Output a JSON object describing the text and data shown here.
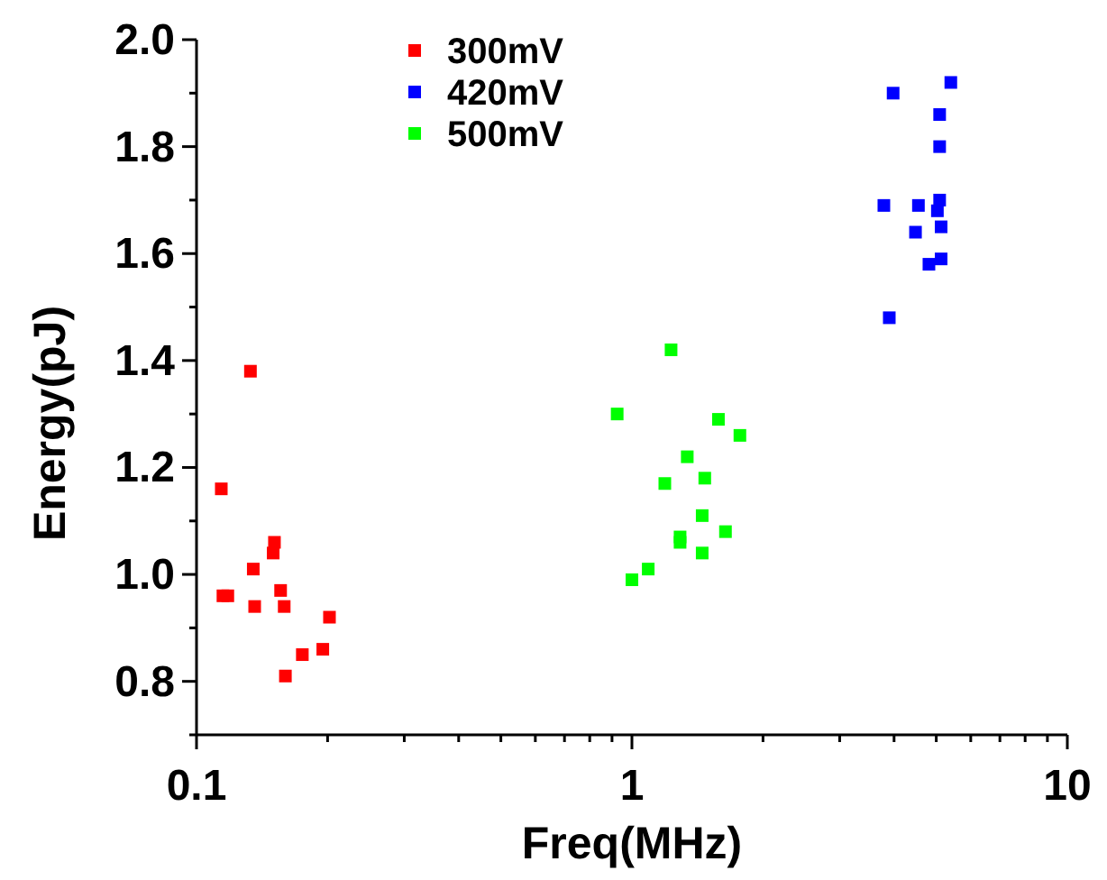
{
  "chart_data": {
    "type": "scatter",
    "xlabel": "Freq(MHz)",
    "ylabel": "Energy(pJ)",
    "log": "x",
    "xlim": [
      0.1,
      10
    ],
    "ylim": [
      0.7,
      2.0
    ],
    "xticks": [
      0.1,
      {
        "value": 0.2,
        "label": null
      },
      {
        "value": 0.3,
        "label": null
      },
      {
        "value": 0.4,
        "label": null
      },
      {
        "value": 0.5,
        "label": null
      },
      {
        "value": 0.6,
        "label": null
      },
      {
        "value": 0.7,
        "label": null
      },
      {
        "value": 0.8,
        "label": null
      },
      {
        "value": 0.9,
        "label": null
      },
      1,
      {
        "value": 2,
        "label": null
      },
      {
        "value": 3,
        "label": null
      },
      {
        "value": 4,
        "label": null
      },
      {
        "value": 5,
        "label": null
      },
      {
        "value": 6,
        "label": null
      },
      {
        "value": 7,
        "label": null
      },
      {
        "value": 8,
        "label": null
      },
      {
        "value": 9,
        "label": null
      },
      10
    ],
    "yticks": [
      {
        "value": 0.7,
        "label": null
      },
      {
        "value": 0.8,
        "label": "0.8"
      },
      {
        "value": 0.9,
        "label": null
      },
      {
        "value": 1.0,
        "label": "1.0"
      },
      {
        "value": 1.1,
        "label": null
      },
      {
        "value": 1.2,
        "label": "1.2"
      },
      {
        "value": 1.3,
        "label": null
      },
      {
        "value": 1.4,
        "label": "1.4"
      },
      {
        "value": 1.5,
        "label": null
      },
      {
        "value": 1.6,
        "label": "1.6"
      },
      {
        "value": 1.7,
        "label": null
      },
      {
        "value": 1.8,
        "label": "1.8"
      },
      {
        "value": 1.9,
        "label": null
      },
      {
        "value": 2.0,
        "label": "2.0"
      }
    ],
    "grid": false,
    "legend": "top left",
    "marker": "square",
    "series": [
      {
        "name": "300mV",
        "color": "#ff0000",
        "x": [
          0.133,
          0.114,
          0.151,
          0.15,
          0.135,
          0.115,
          0.118,
          0.156,
          0.136,
          0.159,
          0.202,
          0.195,
          0.175,
          0.16
        ],
        "values": [
          1.38,
          1.16,
          1.06,
          1.04,
          1.01,
          0.96,
          0.96,
          0.97,
          0.94,
          0.94,
          0.92,
          0.86,
          0.85,
          0.81
        ]
      },
      {
        "name": "420mV",
        "color": "#0000ff",
        "x": [
          3.98,
          5.4,
          5.09,
          5.09,
          3.79,
          4.55,
          5.09,
          5.03,
          5.13,
          4.48,
          5.13,
          4.81,
          3.9
        ],
        "values": [
          1.9,
          1.92,
          1.86,
          1.8,
          1.69,
          1.69,
          1.7,
          1.68,
          1.65,
          1.64,
          1.59,
          1.58,
          1.48
        ]
      },
      {
        "name": "500mV",
        "color": "#00ff00",
        "x": [
          1.23,
          0.925,
          1.58,
          1.77,
          1.34,
          1.19,
          1.47,
          1.45,
          1.29,
          1.29,
          1.64,
          1.45,
          1.09,
          1.0
        ],
        "values": [
          1.42,
          1.3,
          1.29,
          1.26,
          1.22,
          1.17,
          1.18,
          1.11,
          1.07,
          1.06,
          1.08,
          1.04,
          1.01,
          0.99
        ]
      }
    ]
  }
}
